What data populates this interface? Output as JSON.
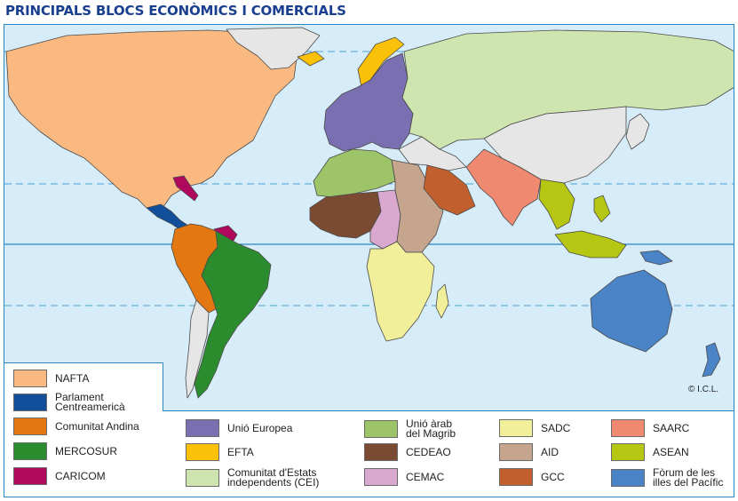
{
  "title": "PRINCIPALS BLOCS ECONÒMICS I COMERCIALS",
  "credit": "© I.C.L.",
  "colors": {
    "ocean": "#d6ecf8",
    "other_land": "#e6e6e6",
    "border": "#4a4a4a",
    "frame": "#2a86c2"
  },
  "legend": [
    {
      "label": "NAFTA",
      "color": "#f9b981"
    },
    {
      "label": "Parlament\nCentreamericà",
      "color": "#114f9a"
    },
    {
      "label": "Comunitat Andina",
      "color": "#e2780f"
    },
    {
      "label": "MERCOSUR",
      "color": "#2a8c2c"
    },
    {
      "label": "CARICOM",
      "color": "#b0085d"
    },
    {
      "label": "Unió Europea",
      "color": "#7a6fb0"
    },
    {
      "label": "EFTA",
      "color": "#fbc108"
    },
    {
      "label": "Comunitat d'Estats\nindependents (CEI)",
      "color": "#cfe5b0"
    },
    {
      "label": "Unió àrab\ndel Magrib",
      "color": "#9ec46a"
    },
    {
      "label": "CEDEAO",
      "color": "#7a4a32"
    },
    {
      "label": "CEMAC",
      "color": "#d8a8cf"
    },
    {
      "label": "SADC",
      "color": "#f2ef9a"
    },
    {
      "label": "AID",
      "color": "#c5a58e"
    },
    {
      "label": "GCC",
      "color": "#c1602e"
    },
    {
      "label": "SAARC",
      "color": "#ef8a70"
    },
    {
      "label": "ASEAN",
      "color": "#b5c712"
    },
    {
      "label": "Fòrum de les\nilles del Pacífic",
      "color": "#4a83c6"
    }
  ]
}
